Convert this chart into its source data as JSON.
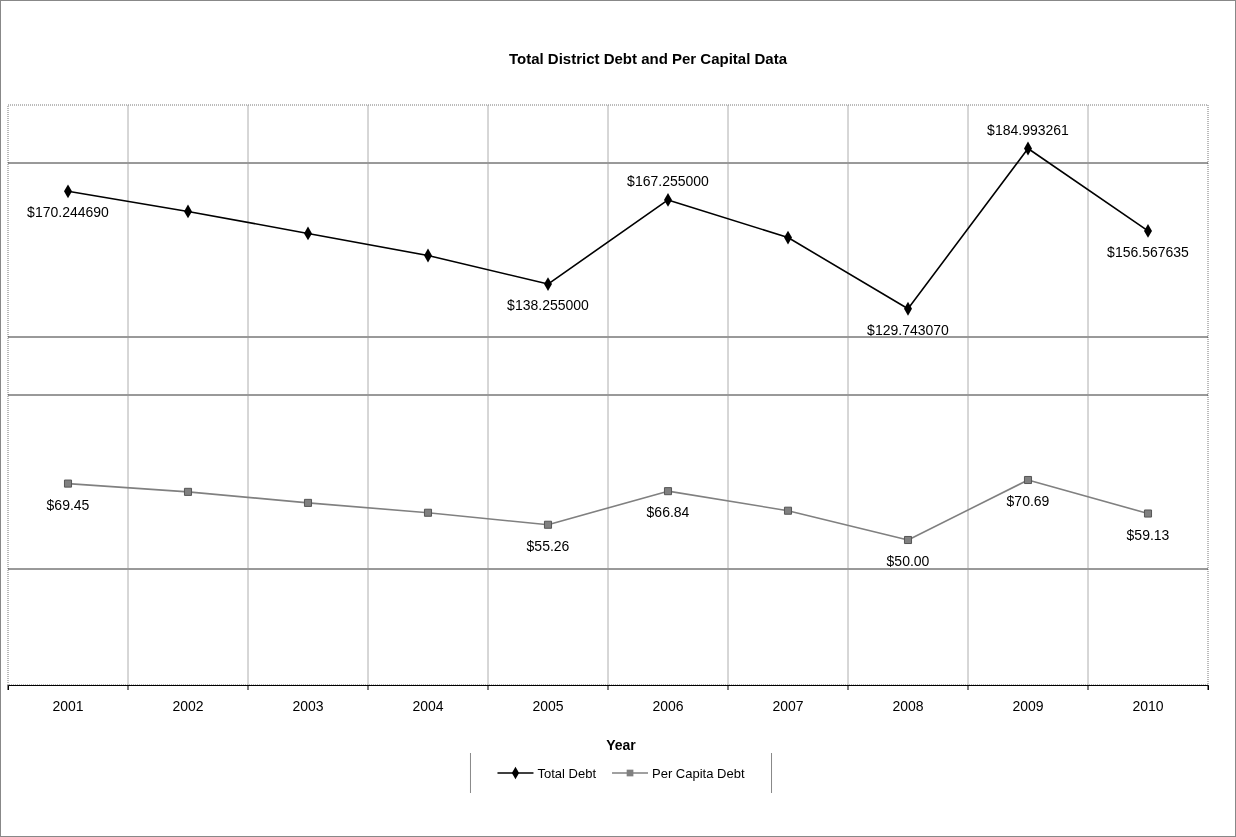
{
  "chart_data": {
    "type": "line",
    "title": "Total District Debt and Per Capital Data",
    "xlabel": "Year",
    "categories": [
      "2001",
      "2002",
      "2003",
      "2004",
      "2005",
      "2006",
      "2007",
      "2008",
      "2009",
      "2010"
    ],
    "ylim": [
      0,
      200
    ],
    "yticks": [
      {
        "value": 40,
        "label": null
      },
      {
        "value": 100,
        "label": null
      },
      {
        "value": 120,
        "label": null
      },
      {
        "value": 180,
        "label": null
      }
    ],
    "tick_labels": "x",
    "grid": true,
    "legend": "bottom",
    "series": [
      {
        "name": "Total Debt",
        "color": "#000000",
        "marker": "diamond",
        "values": [
          170.24469,
          163.3,
          155.7,
          148.1,
          138.255,
          167.255,
          154.3,
          129.74307,
          184.993261,
          156.567635
        ],
        "value_labels": [
          "$170.244690",
          null,
          null,
          null,
          "$138.255000",
          "$167.255000",
          null,
          "$129.743070",
          "$184.993261",
          "$156.567635"
        ]
      },
      {
        "name": "Per Capita Debt",
        "color": "#808080",
        "marker": "square",
        "values": [
          69.45,
          66.6,
          62.8,
          59.4,
          55.26,
          66.84,
          60.1,
          50.0,
          70.69,
          59.13
        ],
        "value_labels": [
          "$69.45",
          null,
          null,
          null,
          "$55.26",
          "$66.84",
          null,
          "$50.00",
          "$70.69",
          "$59.13"
        ]
      }
    ]
  }
}
